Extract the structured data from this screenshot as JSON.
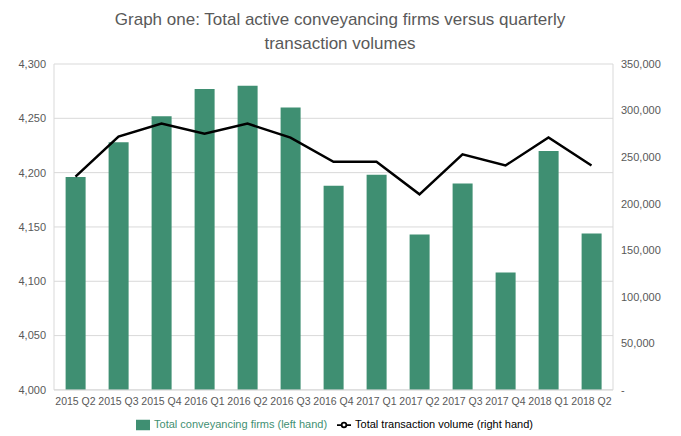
{
  "chart_data": {
    "type": "bar",
    "title": "Graph one: Total active conveyancing firms versus quarterly transaction volumes",
    "categories": [
      "2015 Q2",
      "2015 Q3",
      "2015 Q4",
      "2016 Q1",
      "2016 Q2",
      "2016 Q3",
      "2016 Q4",
      "2017 Q1",
      "2017 Q2",
      "2017 Q3",
      "2017 Q4",
      "2018 Q1",
      "2018 Q2"
    ],
    "series": [
      {
        "name": "Total conveyancing firms (left hand)",
        "type": "bar",
        "color": "#3f8f72",
        "values": [
          4196,
          4228,
          4252,
          4277,
          4280,
          4260,
          4188,
          4198,
          4143,
          4190,
          4108,
          4220,
          4144
        ]
      },
      {
        "name": "Total transaction volume (right hand)",
        "type": "line",
        "axis": "y2",
        "color": "#000000",
        "values": [
          229000,
          272000,
          286000,
          275000,
          286000,
          271000,
          245000,
          245000,
          210000,
          253000,
          241000,
          271000,
          241000
        ]
      }
    ],
    "ylim": [
      4000,
      4300
    ],
    "yticks": [
      {
        "value": 4000,
        "label": "4,000"
      },
      {
        "value": 4050,
        "label": "4,050"
      },
      {
        "value": 4100,
        "label": "4,100"
      },
      {
        "value": 4150,
        "label": "4,150"
      },
      {
        "value": 4200,
        "label": "4,200"
      },
      {
        "value": 4250,
        "label": "4,250"
      },
      {
        "value": 4300,
        "label": "4,300"
      }
    ],
    "y2lim": [
      0,
      350000
    ],
    "y2ticks": [
      {
        "value": 0,
        "label": "-"
      },
      {
        "value": 50000,
        "label": "50,000"
      },
      {
        "value": 100000,
        "label": "100,000"
      },
      {
        "value": 150000,
        "label": "150,000"
      },
      {
        "value": 200000,
        "label": "200,000"
      },
      {
        "value": 250000,
        "label": "250,000"
      },
      {
        "value": 300000,
        "label": "300,000"
      },
      {
        "value": 350000,
        "label": "350,000"
      }
    ],
    "grid": true,
    "legend": "bottom"
  }
}
